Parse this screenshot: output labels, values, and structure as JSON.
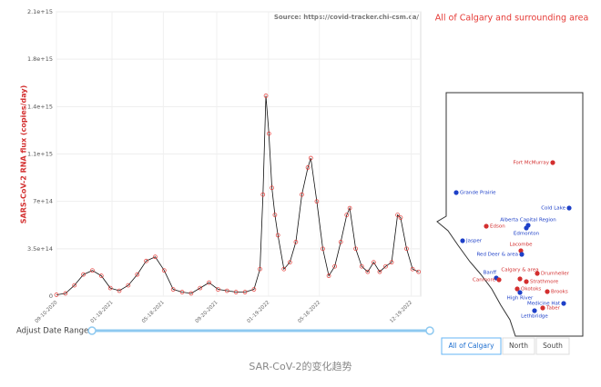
{
  "chart_data": {
    "type": "line",
    "source": "Source: https://covid-tracker.chi-csm.ca/",
    "y_label": "SARS-CoV-2 RNA flux (copies/day)",
    "x": [
      "09-10-2020",
      "10-01-2020",
      "10-22-2020",
      "11-12-2020",
      "12-03-2020",
      "12-24-2020",
      "01-14-2021",
      "02-04-2021",
      "02-25-2021",
      "03-18-2021",
      "04-08-2021",
      "04-29-2021",
      "05-20-2021",
      "06-10-2021",
      "07-01-2021",
      "07-22-2021",
      "08-12-2021",
      "09-02-2021",
      "09-23-2021",
      "10-14-2021",
      "11-04-2021",
      "11-25-2021",
      "12-16-2021",
      "12-30-2021",
      "01-06-2022",
      "01-13-2022",
      "01-20-2022",
      "01-27-2022",
      "02-03-2022",
      "02-10-2022",
      "02-24-2022",
      "03-10-2022",
      "03-24-2022",
      "04-07-2022",
      "04-21-2022",
      "04-28-2022",
      "05-12-2022",
      "05-26-2022",
      "06-09-2022",
      "06-23-2022",
      "07-07-2022",
      "07-21-2022",
      "07-28-2022",
      "08-11-2022",
      "08-25-2022",
      "09-08-2022",
      "09-22-2022",
      "10-06-2022",
      "10-20-2022",
      "11-03-2022",
      "11-17-2022",
      "11-24-2022",
      "12-08-2022",
      "12-22-2022",
      "01-05-2023"
    ],
    "values": [
      10000000000000.0,
      20000000000000.0,
      80000000000000.0,
      160000000000000.0,
      190000000000000.0,
      150000000000000.0,
      60000000000000.0,
      40000000000000.0,
      80000000000000.0,
      160000000000000.0,
      260000000000000.0,
      290000000000000.0,
      190000000000000.0,
      50000000000000.0,
      30000000000000.0,
      20000000000000.0,
      60000000000000.0,
      100000000000000.0,
      50000000000000.0,
      40000000000000.0,
      30000000000000.0,
      30000000000000.0,
      50000000000000.0,
      200000000000000.0,
      750000000000000.0,
      1480000000000000.0,
      1200000000000000.0,
      800000000000000.0,
      600000000000000.0,
      450000000000000.0,
      200000000000000.0,
      250000000000000.0,
      400000000000000.0,
      750000000000000.0,
      950000000000000.0,
      1020000000000000.0,
      700000000000000.0,
      350000000000000.0,
      150000000000000.0,
      220000000000000.0,
      400000000000000.0,
      600000000000000.0,
      650000000000000.0,
      350000000000000.0,
      220000000000000.0,
      180000000000000.0,
      250000000000000.0,
      180000000000000.0,
      220000000000000.0,
      250000000000000.0,
      600000000000000.0,
      580000000000000.0,
      350000000000000.0,
      200000000000000.0,
      180000000000000.0
    ],
    "line_color": "#111111",
    "marker_color": "#e53935",
    "xlim": [
      "09-10-2020",
      "01-10-2023"
    ],
    "xticks": [
      "09-10-2020",
      "01-18-2021",
      "05-18-2021",
      "09-20-2021",
      "01-19-2022",
      "05-18-2022",
      "12-19-2022"
    ],
    "ylim": [
      0,
      2100000000000000.0
    ],
    "yticks": [
      0,
      {
        "value": 350000000000000.0,
        "label": "3.5e+14"
      },
      {
        "value": 700000000000000.0,
        "label": "7e+14"
      },
      {
        "value": 1050000000000000.0,
        "label": "1.1e+15"
      },
      {
        "value": 1400000000000000.0,
        "label": "1.4e+15"
      },
      {
        "value": 1750000000000000.0,
        "label": "1.8e+15"
      },
      {
        "value": 2100000000000000.0,
        "label": "2.1e+15"
      }
    ],
    "grid": true,
    "range_label": "Adjust Date Range:"
  },
  "map": {
    "title": "All of Calgary and surrounding area",
    "cities": [
      {
        "label": "Fort McMurray",
        "color": "#d32f2f"
      },
      {
        "label": "Grande Prairie",
        "color": "#1e40c8"
      },
      {
        "label": "Cold Lake",
        "color": "#1e40c8"
      },
      {
        "label": "Alberta Capital Region",
        "color": "#1e40c8"
      },
      {
        "label": "Edmonton",
        "color": "#1e40c8"
      },
      {
        "label": "Edson",
        "color": "#d32f2f"
      },
      {
        "label": "Jasper",
        "color": "#1e40c8"
      },
      {
        "label": "Lacombe",
        "color": "#d32f2f"
      },
      {
        "label": "Red Deer & area",
        "color": "#1e40c8"
      },
      {
        "label": "Banff",
        "color": "#1e40c8"
      },
      {
        "label": "Drumheller",
        "color": "#d32f2f"
      },
      {
        "label": "Canmore",
        "color": "#d32f2f"
      },
      {
        "label": "Calgary & area",
        "color": "#d32f2f"
      },
      {
        "label": "Strathmore",
        "color": "#d32f2f"
      },
      {
        "label": "Okotoks",
        "color": "#d32f2f"
      },
      {
        "label": "High River",
        "color": "#1e40c8"
      },
      {
        "label": "Brooks",
        "color": "#d32f2f"
      },
      {
        "label": "Medicine Hat",
        "color": "#1e40c8"
      },
      {
        "label": "Taber",
        "color": "#d32f2f"
      },
      {
        "label": "Lethbridge",
        "color": "#1e40c8"
      }
    ],
    "buttons": [
      "All of Calgary",
      "North",
      "South"
    ]
  },
  "caption": "SAR-CoV-2的变化趋势"
}
